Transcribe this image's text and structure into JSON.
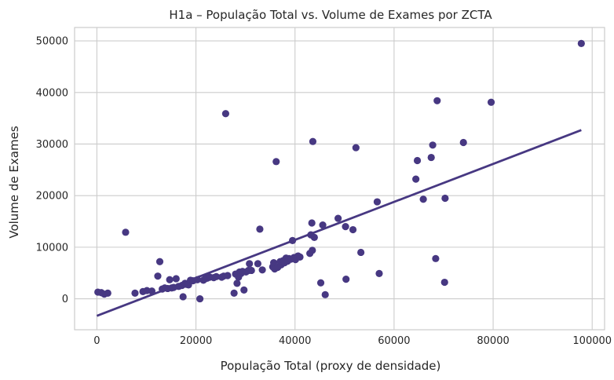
{
  "chart_data": {
    "type": "scatter",
    "title": "H1a – População Total vs. Volume de Exames por ZCTA",
    "xlabel": "População Total (proxy de densidade)",
    "ylabel": "Volume de Exames",
    "xlim": [
      -4500,
      102500
    ],
    "ylim": [
      -6000,
      52600
    ],
    "x_ticks": [
      0,
      20000,
      40000,
      60000,
      80000,
      100000
    ],
    "x_tick_labels": [
      "0",
      "20000",
      "40000",
      "60000",
      "80000",
      "100000"
    ],
    "y_ticks": [
      0,
      10000,
      20000,
      30000,
      40000,
      50000
    ],
    "y_tick_labels": [
      "0",
      "10000",
      "20000",
      "30000",
      "40000",
      "50000"
    ],
    "grid": true,
    "marker_color": "#473882",
    "line_color": "#473882",
    "points": [
      {
        "x": 200,
        "y": 1300
      },
      {
        "x": 900,
        "y": 1200
      },
      {
        "x": 1500,
        "y": 900
      },
      {
        "x": 2200,
        "y": 1100
      },
      {
        "x": 5800,
        "y": 12900
      },
      {
        "x": 7700,
        "y": 1100
      },
      {
        "x": 9300,
        "y": 1400
      },
      {
        "x": 10100,
        "y": 1600
      },
      {
        "x": 11100,
        "y": 1500
      },
      {
        "x": 12300,
        "y": 4400
      },
      {
        "x": 12700,
        "y": 7200
      },
      {
        "x": 13200,
        "y": 1900
      },
      {
        "x": 13700,
        "y": 2100
      },
      {
        "x": 14300,
        "y": 2000
      },
      {
        "x": 14700,
        "y": 3700
      },
      {
        "x": 15100,
        "y": 2100
      },
      {
        "x": 15500,
        "y": 2200
      },
      {
        "x": 16000,
        "y": 3900
      },
      {
        "x": 16500,
        "y": 2400
      },
      {
        "x": 17200,
        "y": 2600
      },
      {
        "x": 17400,
        "y": 400
      },
      {
        "x": 17800,
        "y": 3000
      },
      {
        "x": 18100,
        "y": 2800
      },
      {
        "x": 18500,
        "y": 2700
      },
      {
        "x": 18900,
        "y": 3600
      },
      {
        "x": 19400,
        "y": 3500
      },
      {
        "x": 20300,
        "y": 3700
      },
      {
        "x": 20800,
        "y": 0
      },
      {
        "x": 21500,
        "y": 3600
      },
      {
        "x": 21900,
        "y": 3900
      },
      {
        "x": 22300,
        "y": 4000
      },
      {
        "x": 22800,
        "y": 4200
      },
      {
        "x": 23600,
        "y": 4100
      },
      {
        "x": 24100,
        "y": 4300
      },
      {
        "x": 25200,
        "y": 4200
      },
      {
        "x": 25600,
        "y": 4400
      },
      {
        "x": 26000,
        "y": 35900
      },
      {
        "x": 26400,
        "y": 4500
      },
      {
        "x": 27700,
        "y": 1100
      },
      {
        "x": 28000,
        "y": 4800
      },
      {
        "x": 28300,
        "y": 3000
      },
      {
        "x": 28600,
        "y": 4200
      },
      {
        "x": 28800,
        "y": 5200
      },
      {
        "x": 29100,
        "y": 4900
      },
      {
        "x": 29400,
        "y": 5300
      },
      {
        "x": 29700,
        "y": 1700
      },
      {
        "x": 30100,
        "y": 5200
      },
      {
        "x": 30600,
        "y": 5500
      },
      {
        "x": 30800,
        "y": 6800
      },
      {
        "x": 31200,
        "y": 5500
      },
      {
        "x": 32500,
        "y": 6800
      },
      {
        "x": 32900,
        "y": 13500
      },
      {
        "x": 33400,
        "y": 5600
      },
      {
        "x": 35500,
        "y": 6200
      },
      {
        "x": 35700,
        "y": 7000
      },
      {
        "x": 35900,
        "y": 5800
      },
      {
        "x": 36200,
        "y": 26600
      },
      {
        "x": 36500,
        "y": 6100
      },
      {
        "x": 37000,
        "y": 7200
      },
      {
        "x": 37200,
        "y": 6600
      },
      {
        "x": 37600,
        "y": 7400
      },
      {
        "x": 37900,
        "y": 7000
      },
      {
        "x": 38200,
        "y": 7900
      },
      {
        "x": 38500,
        "y": 7300
      },
      {
        "x": 38800,
        "y": 7800
      },
      {
        "x": 39200,
        "y": 7700
      },
      {
        "x": 39500,
        "y": 11300
      },
      {
        "x": 39800,
        "y": 8000
      },
      {
        "x": 40100,
        "y": 7600
      },
      {
        "x": 40600,
        "y": 8300
      },
      {
        "x": 41000,
        "y": 8100
      },
      {
        "x": 43000,
        "y": 8800
      },
      {
        "x": 43200,
        "y": 12400
      },
      {
        "x": 43400,
        "y": 14700
      },
      {
        "x": 43500,
        "y": 9400
      },
      {
        "x": 43600,
        "y": 30500
      },
      {
        "x": 43900,
        "y": 11900
      },
      {
        "x": 45200,
        "y": 3100
      },
      {
        "x": 45600,
        "y": 14300
      },
      {
        "x": 46100,
        "y": 800
      },
      {
        "x": 48700,
        "y": 15600
      },
      {
        "x": 50200,
        "y": 14000
      },
      {
        "x": 50300,
        "y": 3800
      },
      {
        "x": 51700,
        "y": 13400
      },
      {
        "x": 52300,
        "y": 29300
      },
      {
        "x": 53300,
        "y": 9000
      },
      {
        "x": 56600,
        "y": 18800
      },
      {
        "x": 57000,
        "y": 4900
      },
      {
        "x": 64400,
        "y": 23200
      },
      {
        "x": 64700,
        "y": 26800
      },
      {
        "x": 65900,
        "y": 19300
      },
      {
        "x": 67500,
        "y": 27400
      },
      {
        "x": 67800,
        "y": 29800
      },
      {
        "x": 68400,
        "y": 7800
      },
      {
        "x": 68700,
        "y": 38400
      },
      {
        "x": 70200,
        "y": 3200
      },
      {
        "x": 70300,
        "y": 19500
      },
      {
        "x": 74000,
        "y": 30300
      },
      {
        "x": 79600,
        "y": 38100
      },
      {
        "x": 97800,
        "y": 49500
      }
    ],
    "regression_line": {
      "x": [
        0,
        97800
      ],
      "y": [
        -3300,
        32700
      ]
    }
  }
}
